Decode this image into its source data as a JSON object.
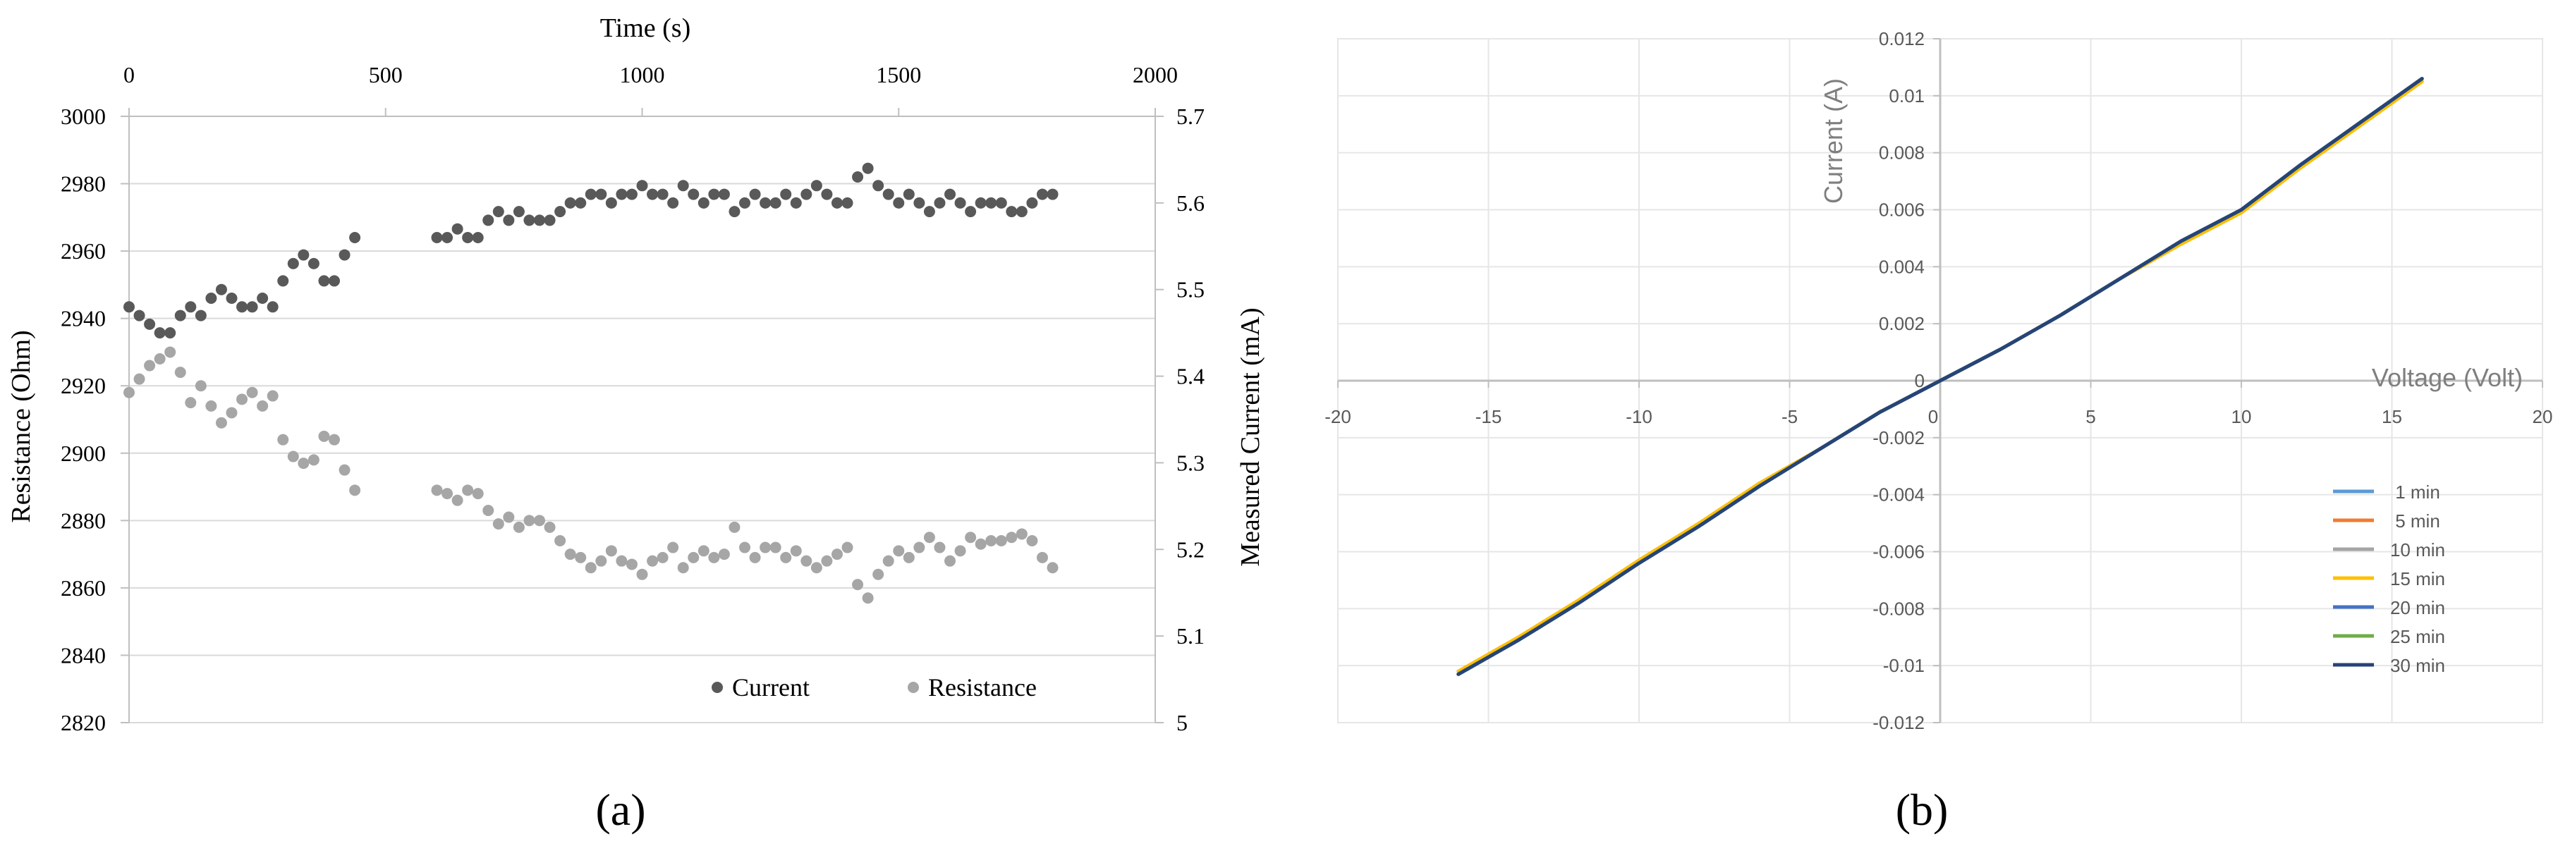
{
  "panels": {
    "a_label": "(a)",
    "b_label": "(b)"
  },
  "chart_data": [
    {
      "type": "scatter",
      "xlabel": "Time (s)",
      "ylabel_left": "Resistance (Ohm)",
      "ylabel_right": "Measured Current (mA)",
      "xlim": [
        0,
        2000
      ],
      "xticks": [
        "0",
        "500",
        "1000",
        "1500",
        "2000"
      ],
      "ylim_left": [
        2820,
        3000
      ],
      "yticks_left": [
        "2820",
        "2840",
        "2860",
        "2880",
        "2900",
        "2920",
        "2940",
        "2960",
        "2980",
        "3000"
      ],
      "ylim_right": [
        5,
        5.7
      ],
      "yticks_right": [
        "5",
        "5.1",
        "5.2",
        "5.3",
        "5.4",
        "5.5",
        "5.6",
        "5.7"
      ],
      "grid": true,
      "legend_position": "bottom-right",
      "colors": {
        "current": "#595959",
        "resistance": "#a6a6a6"
      },
      "series": [
        {
          "name": "Current",
          "axis": "right",
          "x": [
            0,
            20,
            40,
            60,
            80,
            100,
            120,
            140,
            160,
            180,
            200,
            220,
            240,
            260,
            280,
            300,
            320,
            340,
            360,
            380,
            400,
            420,
            440,
            600,
            620,
            640,
            660,
            680,
            700,
            720,
            740,
            760,
            780,
            800,
            820,
            840,
            860,
            880,
            900,
            920,
            940,
            960,
            980,
            1000,
            1020,
            1040,
            1060,
            1080,
            1100,
            1120,
            1140,
            1160,
            1180,
            1200,
            1220,
            1240,
            1260,
            1280,
            1300,
            1320,
            1340,
            1360,
            1380,
            1400,
            1420,
            1440,
            1460,
            1480,
            1500,
            1520,
            1540,
            1560,
            1580,
            1600,
            1620,
            1640,
            1660,
            1680,
            1700,
            1720,
            1740,
            1760,
            1780,
            1800
          ],
          "values": [
            5.48,
            5.47,
            5.46,
            5.45,
            5.45,
            5.47,
            5.48,
            5.47,
            5.49,
            5.5,
            5.49,
            5.48,
            5.48,
            5.49,
            5.48,
            5.51,
            5.53,
            5.54,
            5.53,
            5.51,
            5.51,
            5.54,
            5.56,
            5.56,
            5.56,
            5.57,
            5.56,
            5.56,
            5.58,
            5.59,
            5.58,
            5.59,
            5.58,
            5.58,
            5.58,
            5.59,
            5.6,
            5.6,
            5.61,
            5.61,
            5.6,
            5.61,
            5.61,
            5.62,
            5.61,
            5.61,
            5.6,
            5.62,
            5.61,
            5.6,
            5.61,
            5.61,
            5.59,
            5.6,
            5.61,
            5.6,
            5.6,
            5.61,
            5.6,
            5.61,
            5.62,
            5.61,
            5.6,
            5.6,
            5.63,
            5.64,
            5.62,
            5.61,
            5.6,
            5.61,
            5.6,
            5.59,
            5.6,
            5.61,
            5.6,
            5.59,
            5.6,
            5.6,
            5.6,
            5.59,
            5.59,
            5.6,
            5.61,
            5.61
          ]
        },
        {
          "name": "Resistance",
          "axis": "left",
          "x": [
            0,
            20,
            40,
            60,
            80,
            100,
            120,
            140,
            160,
            180,
            200,
            220,
            240,
            260,
            280,
            300,
            320,
            340,
            360,
            380,
            400,
            420,
            440,
            600,
            620,
            640,
            660,
            680,
            700,
            720,
            740,
            760,
            780,
            800,
            820,
            840,
            860,
            880,
            900,
            920,
            940,
            960,
            980,
            1000,
            1020,
            1040,
            1060,
            1080,
            1100,
            1120,
            1140,
            1160,
            1180,
            1200,
            1220,
            1240,
            1260,
            1280,
            1300,
            1320,
            1340,
            1360,
            1380,
            1400,
            1420,
            1440,
            1460,
            1480,
            1500,
            1520,
            1540,
            1560,
            1580,
            1600,
            1620,
            1640,
            1660,
            1680,
            1700,
            1720,
            1740,
            1760,
            1780,
            1800
          ],
          "values": [
            2918,
            2922,
            2926,
            2928,
            2930,
            2924,
            2915,
            2920,
            2914,
            2909,
            2912,
            2916,
            2918,
            2914,
            2917,
            2904,
            2899,
            2897,
            2898,
            2905,
            2904,
            2895,
            2889,
            2889,
            2888,
            2886,
            2889,
            2888,
            2883,
            2879,
            2881,
            2878,
            2880,
            2880,
            2878,
            2874,
            2870,
            2869,
            2866,
            2868,
            2871,
            2868,
            2867,
            2864,
            2868,
            2869,
            2872,
            2866,
            2869,
            2871,
            2869,
            2870,
            2878,
            2872,
            2869,
            2872,
            2872,
            2869,
            2871,
            2868,
            2866,
            2868,
            2870,
            2872,
            2861,
            2857,
            2864,
            2868,
            2871,
            2869,
            2872,
            2875,
            2872,
            2868,
            2871,
            2875,
            2873,
            2874,
            2874,
            2875,
            2876,
            2874,
            2869,
            2866
          ]
        }
      ]
    },
    {
      "type": "line",
      "xlabel": "Voltage (Volt)",
      "ylabel": "Current (A)",
      "xlim": [
        -20,
        20
      ],
      "xticks": [
        "-20",
        "-15",
        "-10",
        "-5",
        "0",
        "5",
        "10",
        "15",
        "20"
      ],
      "ylim": [
        -0.012,
        0.012
      ],
      "yticks": [
        "-0.012",
        "-0.01",
        "-0.008",
        "-0.006",
        "-0.004",
        "-0.002",
        "0",
        "0.002",
        "0.004",
        "0.006",
        "0.008",
        "0.01",
        "0.012"
      ],
      "grid": true,
      "legend_position": "bottom-right",
      "x": [
        -16,
        -14,
        -12,
        -10,
        -8,
        -6,
        -4,
        -2,
        0,
        2,
        4,
        6,
        8,
        10,
        12,
        14,
        16
      ],
      "series": [
        {
          "name": "1 min",
          "color": "#5b9bd5",
          "values": [
            -0.0103,
            -0.0091,
            -0.0078,
            -0.0064,
            -0.0051,
            -0.0037,
            -0.0024,
            -0.0011,
            0,
            0.0011,
            0.0023,
            0.0036,
            0.0049,
            0.006,
            0.0076,
            0.0091,
            0.0106
          ]
        },
        {
          "name": "5 min",
          "color": "#ed7d31",
          "values": [
            -0.0102,
            -0.009,
            -0.0077,
            -0.0063,
            -0.005,
            -0.0036,
            -0.0024,
            -0.0011,
            0,
            0.0011,
            0.0023,
            0.0036,
            0.0048,
            0.0059,
            0.0075,
            0.009,
            0.0105
          ]
        },
        {
          "name": "10 min",
          "color": "#a5a5a5",
          "values": [
            -0.0103,
            -0.0091,
            -0.0078,
            -0.0064,
            -0.0051,
            -0.0037,
            -0.0024,
            -0.0011,
            0,
            0.0011,
            0.0023,
            0.0036,
            0.0049,
            0.006,
            0.0076,
            0.0091,
            0.0106
          ]
        },
        {
          "name": "15 min",
          "color": "#ffc000",
          "values": [
            -0.0102,
            -0.009,
            -0.0077,
            -0.0063,
            -0.005,
            -0.0036,
            -0.0024,
            -0.0011,
            0,
            0.0011,
            0.0023,
            0.0036,
            0.0048,
            0.0059,
            0.0075,
            0.009,
            0.0105
          ]
        },
        {
          "name": "20 min",
          "color": "#4472c4",
          "values": [
            -0.0103,
            -0.0091,
            -0.0078,
            -0.0064,
            -0.0051,
            -0.0037,
            -0.0024,
            -0.0011,
            0,
            0.0011,
            0.0023,
            0.0036,
            0.0049,
            0.006,
            0.0076,
            0.0091,
            0.0106
          ]
        },
        {
          "name": "25 min",
          "color": "#70ad47",
          "values": [
            -0.0103,
            -0.0091,
            -0.0078,
            -0.0064,
            -0.0051,
            -0.0037,
            -0.0024,
            -0.0011,
            0,
            0.0011,
            0.0023,
            0.0036,
            0.0049,
            0.006,
            0.0076,
            0.0091,
            0.0106
          ]
        },
        {
          "name": "30 min",
          "color": "#264478",
          "values": [
            -0.0103,
            -0.0091,
            -0.0078,
            -0.0064,
            -0.0051,
            -0.0037,
            -0.0024,
            -0.0011,
            0,
            0.0011,
            0.0023,
            0.0036,
            0.0049,
            0.006,
            0.0076,
            0.0091,
            0.0106
          ]
        }
      ]
    }
  ]
}
